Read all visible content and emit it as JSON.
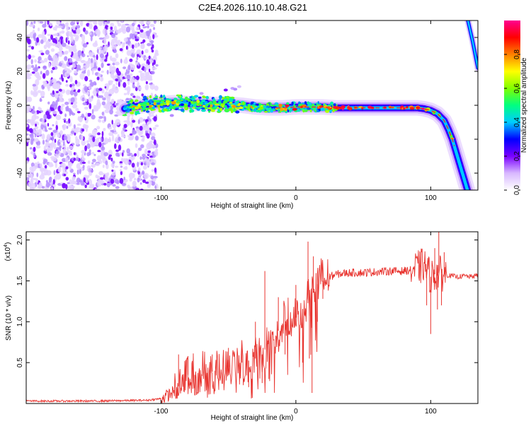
{
  "title": "C2E4.2026.110.10.48.G21",
  "chart_data": [
    {
      "type": "heatmap",
      "name": "spectrogram",
      "xlabel": "Height of straight line (km)",
      "ylabel": "Frequency (Hz)",
      "xlim": [
        -200,
        135
      ],
      "ylim": [
        -50,
        50
      ],
      "xticks": [
        -100,
        0,
        100
      ],
      "xtick_labels": [
        "-100",
        "0",
        "100"
      ],
      "yticks": [
        -40,
        -20,
        0,
        20,
        40
      ],
      "ytick_labels": [
        "-40",
        "-20",
        "0",
        "20",
        "40"
      ],
      "noise_region": {
        "x_from": -200,
        "x_to": -103
      },
      "trace": {
        "x": [
          -127,
          -120,
          -110,
          -100,
          -90,
          -80,
          -70,
          -60,
          -50,
          -40,
          -30,
          -20,
          -10,
          0,
          10,
          20,
          30,
          40,
          50,
          60,
          70,
          80,
          90,
          95,
          100,
          105,
          110,
          113,
          116,
          119,
          122,
          125,
          128
        ],
        "y": [
          -2,
          -1,
          0.5,
          1,
          1.5,
          1,
          1,
          0.5,
          0.5,
          0,
          -1,
          -1.5,
          -1.5,
          -1,
          -1,
          -1,
          -1.5,
          -1.5,
          -1.5,
          -1.5,
          -1.5,
          -1.5,
          -1.5,
          -2,
          -3,
          -5,
          -9,
          -14,
          -20,
          -28,
          -36,
          -44,
          -52
        ]
      },
      "second_trace": {
        "x": [
          127,
          129,
          131,
          133,
          135
        ],
        "y": [
          52,
          45,
          38,
          30,
          22
        ]
      },
      "colorbar": {
        "label": "Normalized spectral amplitude",
        "range": [
          0,
          1
        ],
        "ticks": [
          0.0,
          0.2,
          0.4,
          0.6,
          0.8
        ],
        "tick_labels": [
          "0.0",
          "0.2",
          "0.4",
          "0.6",
          "0.8"
        ],
        "colors": [
          "#ffffff",
          "#d8b8ff",
          "#7a00ff",
          "#0000ff",
          "#00ccff",
          "#00ff80",
          "#80ff00",
          "#ffff00",
          "#ff8000",
          "#ff0000",
          "#ff0090"
        ]
      }
    },
    {
      "type": "line",
      "name": "snr",
      "xlabel": "Height of straight line (km)",
      "ylabel": "SNR (10 * v/v)",
      "scale_label": "(x10",
      "scale_exp": "4",
      "scale_close": ")",
      "xlim": [
        -200,
        135
      ],
      "ylim": [
        0,
        2.1
      ],
      "xticks": [
        -100,
        0,
        100
      ],
      "xtick_labels": [
        "-100",
        "0",
        "100"
      ],
      "yticks": [
        0.5,
        1.0,
        1.5,
        2.0
      ],
      "ytick_labels": [
        "0.5",
        "1.0",
        "1.5",
        "2.0"
      ],
      "color": "#e8332e",
      "series": [
        {
          "name": "SNR",
          "x": [
            -200,
            -150,
            -110,
            -100,
            -95,
            -90,
            -85,
            -80,
            -70,
            -60,
            -50,
            -40,
            -30,
            -25,
            -20,
            -15,
            -10,
            -5,
            0,
            5,
            10,
            15,
            20,
            25,
            30,
            40,
            50,
            60,
            70,
            80,
            85,
            90,
            95,
            100,
            105,
            110,
            115,
            120,
            125,
            130,
            135
          ],
          "y": [
            0.03,
            0.03,
            0.04,
            0.06,
            0.1,
            0.15,
            0.25,
            0.35,
            0.35,
            0.4,
            0.45,
            0.5,
            0.55,
            0.6,
            0.75,
            0.85,
            0.95,
            1.0,
            1.05,
            1.15,
            1.3,
            1.45,
            1.5,
            1.55,
            1.58,
            1.6,
            1.6,
            1.61,
            1.62,
            1.62,
            1.63,
            1.65,
            1.7,
            1.55,
            1.6,
            1.58,
            1.56,
            1.55,
            1.56,
            1.55,
            1.57
          ]
        }
      ],
      "spikes": [
        {
          "x": -87,
          "y": 0.6
        },
        {
          "x": -80,
          "y": 0.58
        },
        {
          "x": -75,
          "y": 0.1
        },
        {
          "x": -62,
          "y": 0.6
        },
        {
          "x": -60,
          "y": 0.15
        },
        {
          "x": -50,
          "y": 0.68
        },
        {
          "x": -40,
          "y": 0.72
        },
        {
          "x": -35,
          "y": 0.2
        },
        {
          "x": -30,
          "y": 1.0
        },
        {
          "x": -25,
          "y": 0.25
        },
        {
          "x": -23,
          "y": 1.62
        },
        {
          "x": -20,
          "y": 0.3
        },
        {
          "x": -13,
          "y": 1.3
        },
        {
          "x": -8,
          "y": 0.6
        },
        {
          "x": 0,
          "y": 1.45
        },
        {
          "x": 5,
          "y": 0.5
        },
        {
          "x": 9,
          "y": 1.98
        },
        {
          "x": 10,
          "y": 0.55
        },
        {
          "x": 12,
          "y": 0.13
        },
        {
          "x": 13,
          "y": 1.8
        },
        {
          "x": 16,
          "y": 1.0
        },
        {
          "x": 20,
          "y": 1.28
        },
        {
          "x": 92,
          "y": 1.85
        },
        {
          "x": 97,
          "y": 1.2
        },
        {
          "x": 100,
          "y": 0.85
        },
        {
          "x": 103,
          "y": 1.9
        },
        {
          "x": 105,
          "y": 1.15
        },
        {
          "x": 106,
          "y": 2.1
        },
        {
          "x": 108,
          "y": 1.2
        },
        {
          "x": 110,
          "y": 1.85
        }
      ]
    }
  ]
}
